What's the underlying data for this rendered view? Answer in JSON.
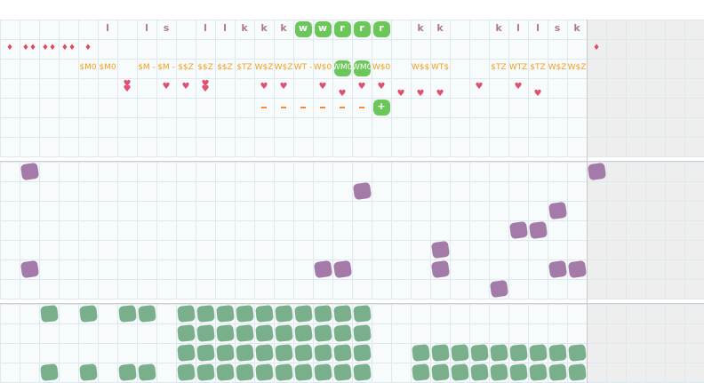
{
  "days": [
    "1",
    "2",
    "3",
    "4",
    "5",
    "6",
    "7",
    "8",
    "9",
    "10",
    "11",
    "12",
    "13",
    "14",
    "15",
    "16",
    "17",
    "18",
    "19",
    "20",
    "21",
    "22",
    "23",
    "24",
    "25",
    "26",
    "27",
    "28",
    "29",
    "30",
    "31",
    "32",
    "33",
    "34",
    "35",
    "36"
  ],
  "colors": {
    "grid_line": "#dde9ee",
    "cell_bg": "#f7fbfc",
    "header_bg": "#ffffff",
    "band_bg": "#eeeeee",
    "divider": "#cfcfcf",
    "letter": "#b07a8c",
    "drop": "#e04a5a",
    "tag": "#f0a020",
    "heart": "#e05070",
    "dash": "#ff8833",
    "green_badge": "#6cc75a",
    "purple": "#a37aa8",
    "green": "#7aaf8c"
  },
  "row_letters": [
    {
      "day": 6,
      "text": "l"
    },
    {
      "day": 8,
      "text": "l"
    },
    {
      "day": 9,
      "text": "s"
    },
    {
      "day": 11,
      "text": "l"
    },
    {
      "day": 12,
      "text": "l"
    },
    {
      "day": 13,
      "text": "k"
    },
    {
      "day": 14,
      "text": "k"
    },
    {
      "day": 15,
      "text": "k"
    },
    {
      "day": 16,
      "text": "w",
      "badge": true
    },
    {
      "day": 17,
      "text": "w",
      "badge": true
    },
    {
      "day": 18,
      "text": "r",
      "badge": true
    },
    {
      "day": 19,
      "text": "r",
      "badge": true
    },
    {
      "day": 20,
      "text": "r",
      "badge": true
    },
    {
      "day": 22,
      "text": "k"
    },
    {
      "day": 23,
      "text": "k"
    },
    {
      "day": 26,
      "text": "k"
    },
    {
      "day": 27,
      "text": "l"
    },
    {
      "day": 28,
      "text": "l"
    },
    {
      "day": 29,
      "text": "s"
    },
    {
      "day": 30,
      "text": "k"
    }
  ],
  "row_drops": [
    {
      "day": 1,
      "text": "♦"
    },
    {
      "day": 2,
      "text": "♦♦"
    },
    {
      "day": 3,
      "text": "♦♦"
    },
    {
      "day": 4,
      "text": "♦♦"
    },
    {
      "day": 5,
      "text": "♦"
    },
    {
      "day": 31,
      "text": "♦"
    }
  ],
  "row_tags": [
    {
      "day": 5,
      "text": "$M0"
    },
    {
      "day": 6,
      "text": "$M0"
    },
    {
      "day": 8,
      "text": "$M -"
    },
    {
      "day": 9,
      "text": "$M -"
    },
    {
      "day": 10,
      "text": "$$Z"
    },
    {
      "day": 11,
      "text": "$$Z"
    },
    {
      "day": 12,
      "text": "$$Z"
    },
    {
      "day": 13,
      "text": "$TZ"
    },
    {
      "day": 14,
      "text": "W$Z"
    },
    {
      "day": 15,
      "text": "W$Z"
    },
    {
      "day": 16,
      "text": "WT -"
    },
    {
      "day": 17,
      "text": "W$0"
    },
    {
      "day": 18,
      "text": "WM0",
      "badge": true
    },
    {
      "day": 19,
      "text": "WM0",
      "badge": true
    },
    {
      "day": 20,
      "text": "W$0"
    },
    {
      "day": 22,
      "text": "W$$"
    },
    {
      "day": 23,
      "text": "WT$"
    },
    {
      "day": 26,
      "text": "$TZ"
    },
    {
      "day": 27,
      "text": "WTZ"
    },
    {
      "day": 28,
      "text": "$TZ"
    },
    {
      "day": 29,
      "text": "W$Z"
    },
    {
      "day": 30,
      "text": "W$Z"
    }
  ],
  "row_hearts": [
    {
      "day": 7,
      "dy": -3
    },
    {
      "day": 7,
      "dy": 3
    },
    {
      "day": 9,
      "dy": 0
    },
    {
      "day": 10,
      "dy": 0
    },
    {
      "day": 11,
      "dy": -3
    },
    {
      "day": 11,
      "dy": 3
    },
    {
      "day": 14,
      "dy": 0
    },
    {
      "day": 15,
      "dy": 0
    },
    {
      "day": 17,
      "dy": 0
    },
    {
      "day": 18,
      "dy": 8
    },
    {
      "day": 19,
      "dy": 0
    },
    {
      "day": 20,
      "dy": 0
    },
    {
      "day": 21,
      "dy": 8
    },
    {
      "day": 22,
      "dy": 8
    },
    {
      "day": 23,
      "dy": 8
    },
    {
      "day": 25,
      "dy": 0
    },
    {
      "day": 27,
      "dy": 0
    },
    {
      "day": 28,
      "dy": 8
    }
  ],
  "row_dashes": [
    14,
    15,
    16,
    17,
    18,
    19
  ],
  "plus_badge": {
    "day": 20,
    "text": "+"
  },
  "purple_blobs": [
    {
      "day": 2,
      "row": 0
    },
    {
      "day": 31,
      "row": 0
    },
    {
      "day": 19,
      "row": 1
    },
    {
      "day": 29,
      "row": 2
    },
    {
      "day": 27,
      "row": 3
    },
    {
      "day": 28,
      "row": 3
    },
    {
      "day": 23,
      "row": 4
    },
    {
      "day": 2,
      "row": 5
    },
    {
      "day": 17,
      "row": 5
    },
    {
      "day": 18,
      "row": 5
    },
    {
      "day": 23,
      "row": 5
    },
    {
      "day": 29,
      "row": 5
    },
    {
      "day": 30,
      "row": 5
    },
    {
      "day": 26,
      "row": 6
    }
  ],
  "green_blobs": [
    {
      "row": 0,
      "days": [
        3,
        5,
        7,
        8,
        10,
        11,
        12,
        13,
        14,
        15,
        16,
        17,
        18,
        19
      ]
    },
    {
      "row": 1,
      "days": [
        10,
        11,
        12,
        13,
        14,
        15,
        16,
        17,
        18,
        19
      ]
    },
    {
      "row": 2,
      "days": [
        10,
        11,
        12,
        13,
        14,
        15,
        16,
        17,
        18,
        19,
        22,
        23,
        24,
        25,
        26,
        27,
        28,
        29,
        30
      ]
    },
    {
      "row": 3,
      "days": [
        3,
        5,
        7,
        8,
        10,
        11,
        12,
        13,
        14,
        15,
        16,
        17,
        18,
        19,
        22,
        23,
        24,
        25,
        26,
        27,
        28,
        29,
        30
      ]
    }
  ]
}
